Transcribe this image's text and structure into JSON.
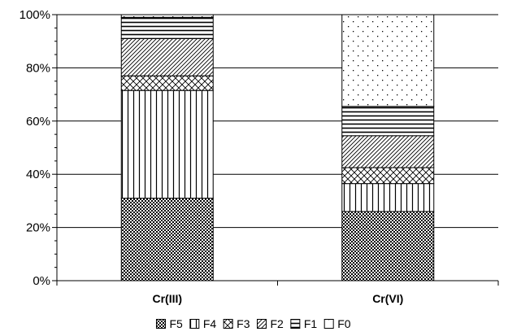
{
  "chart_data": {
    "type": "bar",
    "stacked": true,
    "percent": true,
    "title": "",
    "xlabel": "",
    "ylabel": "",
    "ylim": [
      0,
      100
    ],
    "yticks": [
      0,
      20,
      40,
      60,
      80,
      100
    ],
    "ytick_labels": [
      "0%",
      "20%",
      "40%",
      "60%",
      "80%",
      "100%"
    ],
    "grid": true,
    "legend_position": "bottom",
    "categories": [
      "Cr(III)",
      "Cr(VI)"
    ],
    "series": [
      {
        "name": "F5",
        "pattern": "checker",
        "values": [
          31,
          26
        ]
      },
      {
        "name": "F4",
        "pattern": "vertical",
        "values": [
          40.5,
          10.5
        ]
      },
      {
        "name": "F3",
        "pattern": "crosshatch",
        "values": [
          5.5,
          6
        ]
      },
      {
        "name": "F2",
        "pattern": "diagonal",
        "values": [
          14,
          12
        ]
      },
      {
        "name": "F1",
        "pattern": "horizontal",
        "values": [
          8,
          11
        ]
      },
      {
        "name": "F0",
        "pattern": "dots",
        "values": [
          1,
          34.5
        ]
      }
    ]
  }
}
